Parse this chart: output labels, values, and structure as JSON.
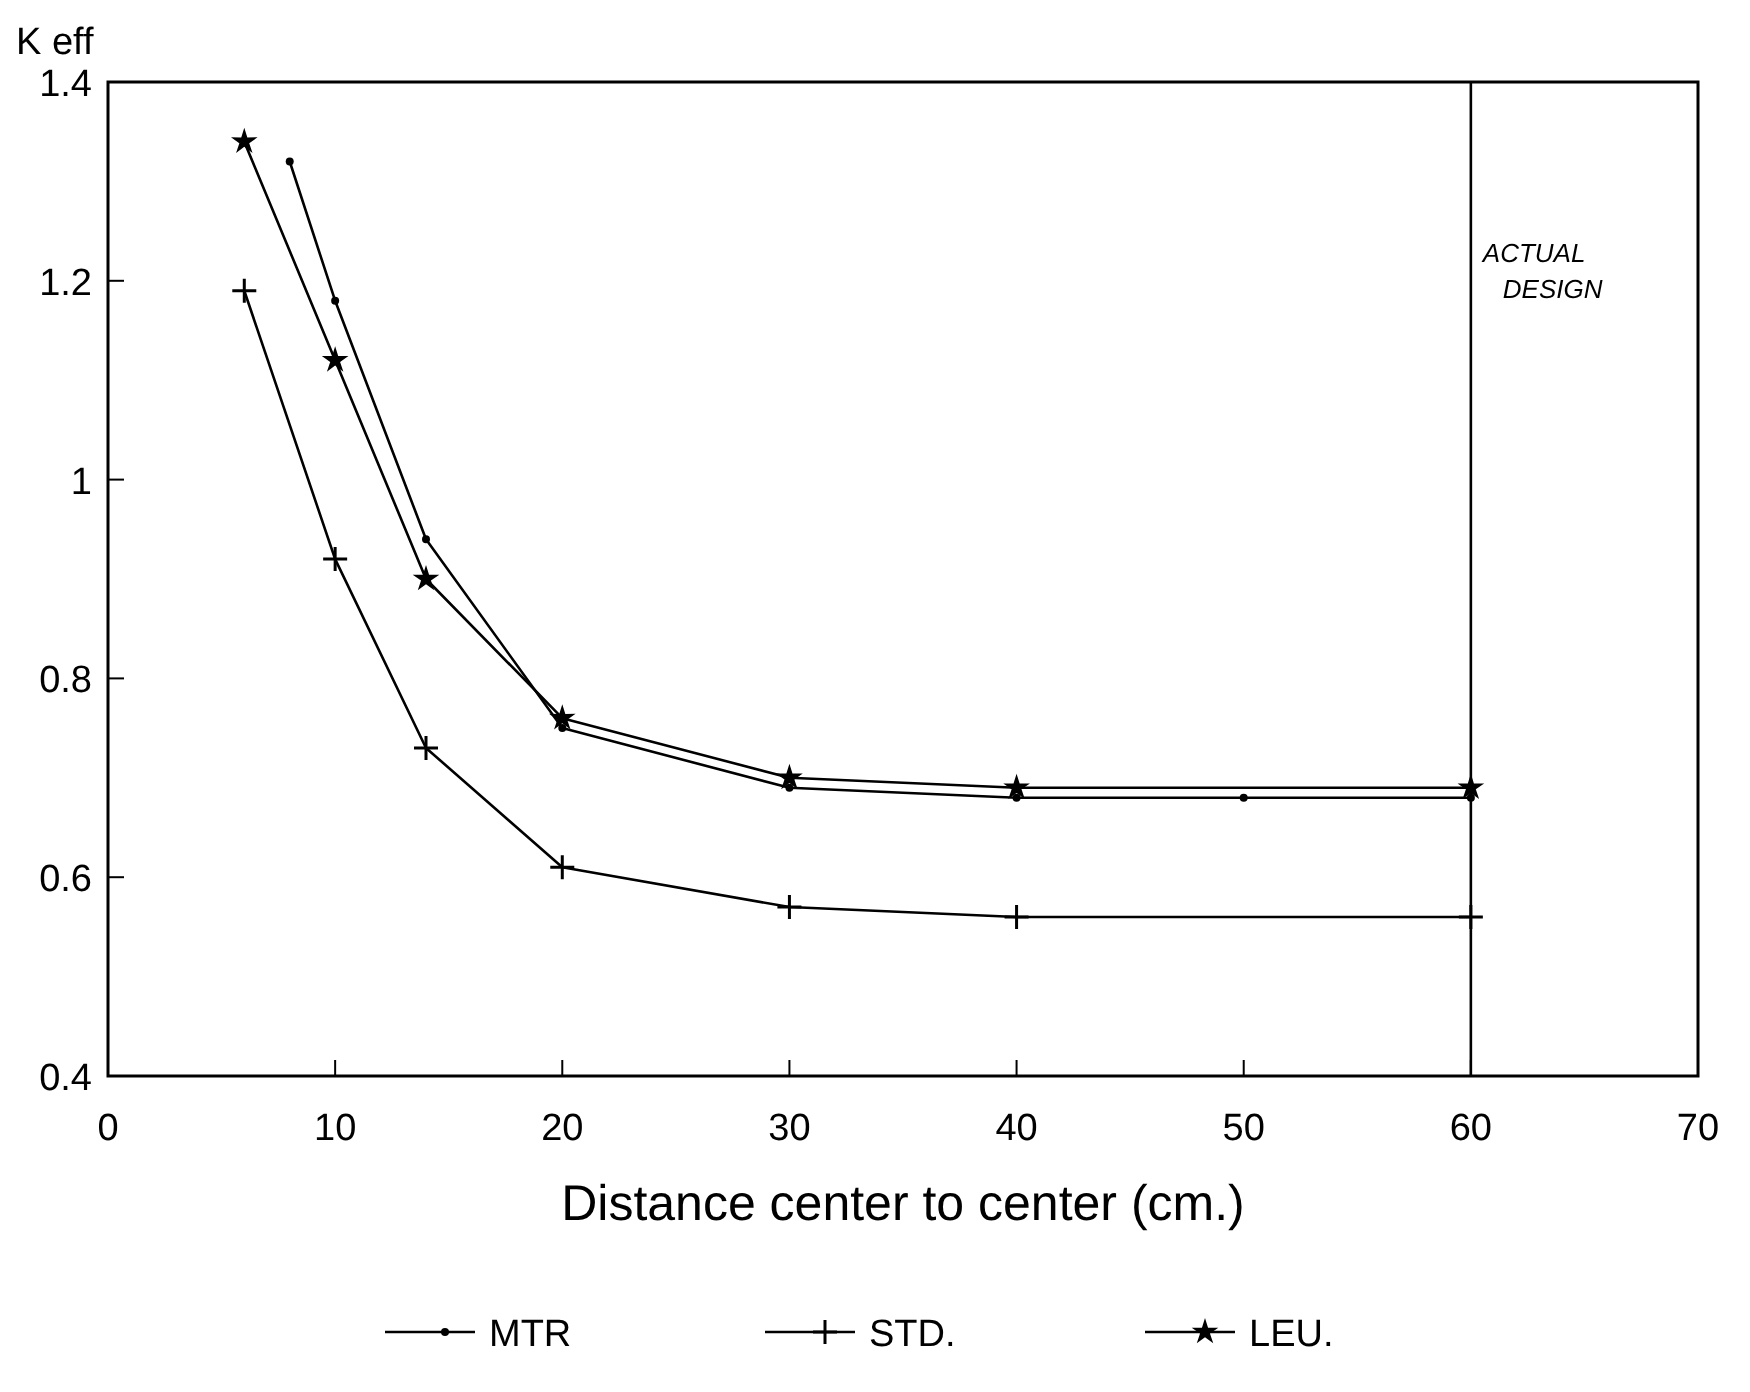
{
  "chart_data": {
    "type": "line",
    "xlabel": "Distance center to center (cm.)",
    "ylabel": "K eff",
    "xlim": [
      0,
      70
    ],
    "xticks": [
      0,
      10,
      20,
      30,
      40,
      50,
      60,
      70
    ],
    "ylim": [
      0.4,
      1.4
    ],
    "yticks": [
      0.4,
      0.6,
      0.8,
      1,
      1.2,
      1.4
    ],
    "grid": false,
    "legend": "bottom",
    "line_style": "solid",
    "series": [
      {
        "name": "MTR",
        "color": "#000000",
        "marker": "circle",
        "x": [
          8,
          10,
          14,
          20,
          30,
          40,
          50,
          60
        ],
        "values": [
          1.32,
          1.18,
          0.94,
          0.75,
          0.69,
          0.68,
          0.68,
          0.68
        ]
      },
      {
        "name": "STD.",
        "color": "#000000",
        "marker": "cross",
        "x": [
          6,
          10,
          14,
          20,
          30,
          40,
          60
        ],
        "values": [
          1.19,
          0.92,
          0.73,
          0.61,
          0.57,
          0.56,
          0.56
        ]
      },
      {
        "name": "LEU.",
        "color": "#000000",
        "marker": "star",
        "x": [
          6,
          10,
          14,
          20,
          30,
          40,
          60
        ],
        "values": [
          1.34,
          1.12,
          0.9,
          0.76,
          0.7,
          0.69,
          0.69
        ]
      }
    ],
    "ref_lines": [
      {
        "axis": "x",
        "value": 60,
        "label": "ACTUAL DESIGN",
        "color": "#000000",
        "line_style": "solid"
      }
    ]
  }
}
